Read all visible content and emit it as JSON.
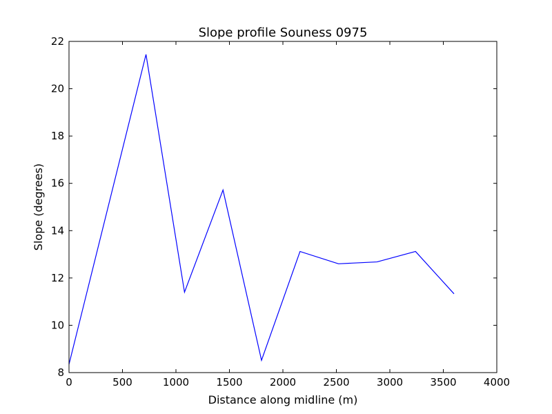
{
  "chart_data": {
    "type": "line",
    "title": "Slope profile Souness 0975",
    "xlabel": "Distance along midline (m)",
    "ylabel": "Slope (degrees)",
    "xlim": [
      0,
      4000
    ],
    "ylim": [
      8,
      22
    ],
    "xticks": [
      0,
      500,
      1000,
      1500,
      2000,
      2500,
      3000,
      3500,
      4000
    ],
    "yticks": [
      8,
      10,
      12,
      14,
      16,
      18,
      20,
      22
    ],
    "grid": false,
    "series": [
      {
        "name": "slope",
        "color": "#0000ff",
        "x": [
          0,
          720,
          1080,
          1440,
          1800,
          2160,
          2520,
          2880,
          3240,
          3600
        ],
        "y": [
          8.35,
          21.45,
          11.4,
          15.72,
          8.52,
          13.12,
          12.6,
          12.68,
          13.12,
          11.33
        ]
      }
    ]
  }
}
